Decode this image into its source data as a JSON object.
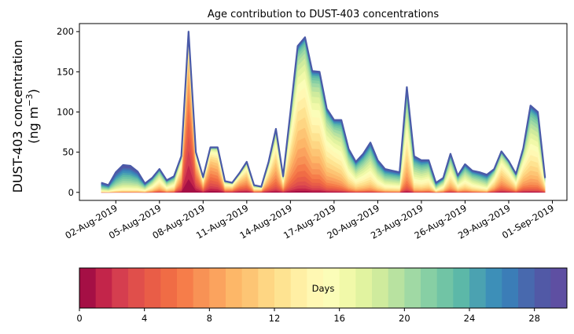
{
  "chart_data": {
    "type": "area",
    "title": "Age contribution to DUST-403 concentrations",
    "ylabel_line1": "DUST-403 concentration",
    "ylabel_line2": "(ng m",
    "ylabel_sup": "−3",
    "ylabel_close": ")",
    "ylim": [
      -10,
      210
    ],
    "yticks": [
      0,
      50,
      100,
      150,
      200
    ],
    "xlim_days_from_1aug": [
      -1.5,
      32.0
    ],
    "xticks": [
      {
        "day": 1,
        "label": "02-Aug-2019"
      },
      {
        "day": 4,
        "label": "05-Aug-2019"
      },
      {
        "day": 7,
        "label": "08-Aug-2019"
      },
      {
        "day": 10,
        "label": "11-Aug-2019"
      },
      {
        "day": 13,
        "label": "14-Aug-2019"
      },
      {
        "day": 16,
        "label": "17-Aug-2019"
      },
      {
        "day": 19,
        "label": "20-Aug-2019"
      },
      {
        "day": 22,
        "label": "23-Aug-2019"
      },
      {
        "day": 25,
        "label": "26-Aug-2019"
      },
      {
        "day": 28,
        "label": "29-Aug-2019"
      },
      {
        "day": 31,
        "label": "01-Sep-2019"
      }
    ],
    "x_start_day": 0,
    "x_step_days": 0.5,
    "total": [
      12,
      9,
      25,
      34,
      33,
      26,
      11,
      18,
      29,
      15,
      20,
      45,
      200,
      50,
      19,
      56,
      56,
      14,
      12,
      24,
      38,
      9,
      7,
      38,
      79,
      20,
      100,
      182,
      193,
      151,
      150,
      104,
      90,
      90,
      54,
      38,
      48,
      62,
      40,
      29,
      27,
      25,
      131,
      45,
      40,
      40,
      12,
      18,
      48,
      21,
      35,
      27,
      25,
      22,
      29,
      51,
      39,
      23,
      55,
      108,
      100,
      18
    ],
    "mean_age_days": [
      22,
      22,
      23,
      23,
      23,
      22,
      20,
      17,
      15,
      17,
      16,
      10,
      3,
      6,
      10,
      7,
      8,
      12,
      11,
      9,
      10,
      14,
      12,
      11,
      11,
      12,
      12,
      12,
      12,
      13,
      13,
      14,
      14,
      15,
      16,
      17,
      17,
      17,
      18,
      19,
      19,
      19,
      14,
      18,
      18,
      17,
      20,
      17,
      15,
      17,
      17,
      18,
      19,
      20,
      14,
      12,
      13,
      15,
      13,
      15,
      15,
      14
    ],
    "colorbar": {
      "label": "Days",
      "min": 0,
      "max": 30,
      "ticks": [
        0,
        4,
        8,
        12,
        16,
        20,
        24,
        28
      ],
      "colors": [
        "#a50f45",
        "#c3254a",
        "#d53e4f",
        "#e04f4b",
        "#e95d47",
        "#f06c45",
        "#f67d4a",
        "#f89255",
        "#fba35e",
        "#fdb768",
        "#fdc574",
        "#fed683",
        "#fee391",
        "#ffefa4",
        "#fff8b3",
        "#fbfdb8",
        "#f1f9a9",
        "#e1f3a0",
        "#cfeb9d",
        "#b8e2a0",
        "#a0d9a4",
        "#87cfa4",
        "#71c4a5",
        "#5cb8a8",
        "#4ba2b1",
        "#3d8fb8",
        "#3b7db7",
        "#4869ae",
        "#5159a6",
        "#5e4fa2"
      ]
    }
  }
}
